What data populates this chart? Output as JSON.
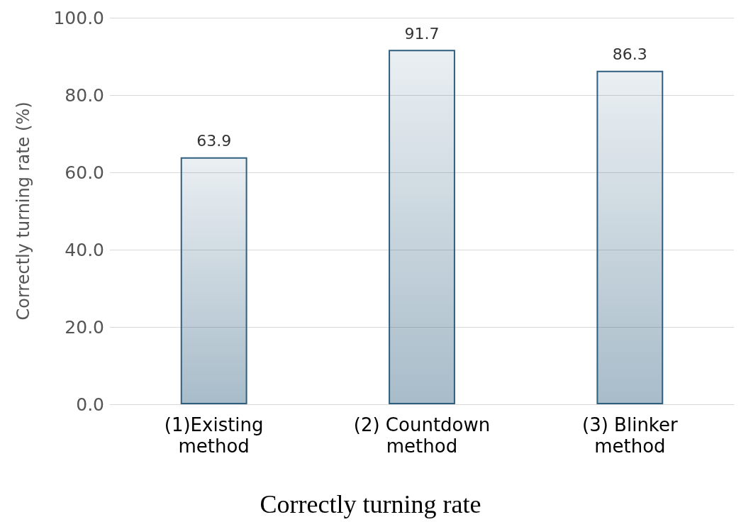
{
  "chart_data": {
    "type": "bar",
    "title": "Correctly turning rate",
    "ylabel": "Correctly turning rate (%)",
    "categories": [
      "(1)Existing\nmethod",
      "(2) Countdown\nmethod",
      "(3) Blinker\nmethod"
    ],
    "values": [
      63.9,
      91.7,
      86.3
    ],
    "color": "#2f5f7f",
    "ylim": [
      0,
      100
    ],
    "yticks": [
      {
        "value": 0,
        "label": "0.0"
      },
      {
        "value": 20,
        "label": "20.0"
      },
      {
        "value": 40,
        "label": "40.0"
      },
      {
        "value": 60,
        "label": "60.0"
      },
      {
        "value": 80,
        "label": "80.0"
      },
      {
        "value": 100,
        "label": "100.0"
      }
    ],
    "grid": "y",
    "data_labels": true
  }
}
